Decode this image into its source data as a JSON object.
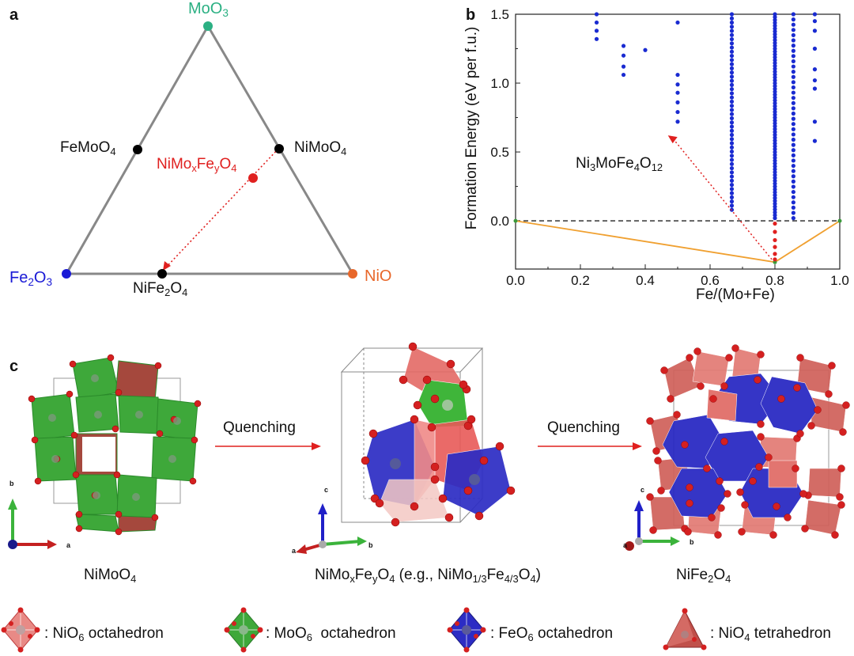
{
  "panel_labels": {
    "a": "a",
    "b": "b",
    "c": "c"
  },
  "ternary": {
    "vertices": {
      "top": {
        "formula": "MoO",
        "sub": "3",
        "color": "#2bb083"
      },
      "left": {
        "formula": "Fe",
        "sub1": "2",
        "mid": "O",
        "sub2": "3",
        "color": "#1a1ad6"
      },
      "right": {
        "formula": "NiO",
        "color": "#e8672a"
      }
    },
    "edge_points": {
      "femoo4": {
        "base": "FeMoO",
        "sub": "4"
      },
      "nimoo4": {
        "base": "NiMoO",
        "sub": "4"
      },
      "nife2o4": {
        "p1": "NiFe",
        "s1": "2",
        "p2": "O",
        "s2": "4"
      }
    },
    "interior_point": {
      "p1": "NiMo",
      "s1": "x",
      "p2": "Fe",
      "s2": "y",
      "p3": "O",
      "s3": "4",
      "color": "#e0201f"
    }
  },
  "chart_data": {
    "type": "scatter",
    "ylabel": "Formation Energy (eV per f.u.)",
    "xlabel": "Fe/(Mo+Fe)",
    "xlim": [
      0.0,
      1.0
    ],
    "ylim": [
      -0.35,
      1.5
    ],
    "x_ticks": [
      "0.0",
      "0.2",
      "0.4",
      "0.6",
      "0.8",
      "1.0"
    ],
    "y_ticks": [
      "0.0",
      "0.5",
      "1.0",
      "1.5"
    ],
    "annotation": {
      "p1": "Ni",
      "s1": "3",
      "p2": "MoFe",
      "s2": "4",
      "p3": "O",
      "s3": "12",
      "x": 0.47,
      "y": 0.62
    },
    "reference_line_y": 0.0,
    "hull": {
      "x": [
        0.0,
        0.8,
        1.0
      ],
      "y": [
        0.0,
        -0.3,
        0.0
      ],
      "color": "#f0a030"
    },
    "stable_points": {
      "x": 0.8,
      "y": [
        -0.02,
        -0.08,
        -0.14,
        -0.19,
        -0.24,
        -0.28
      ]
    },
    "series": [
      {
        "x": 0.25,
        "y": [
          1.5,
          1.44,
          1.38,
          1.32
        ]
      },
      {
        "x": 0.333,
        "y": [
          1.27,
          1.2,
          1.12,
          1.06
        ]
      },
      {
        "x": 0.4,
        "y": [
          1.24
        ]
      },
      {
        "x": 0.5,
        "y": [
          1.44,
          1.06,
          0.99,
          0.93,
          0.86,
          0.79,
          0.72
        ]
      },
      {
        "x": 0.667,
        "y_from": 0.08,
        "y_to": 1.5,
        "n": 48
      },
      {
        "x": 0.8,
        "y_from": 0.02,
        "y_to": 1.5,
        "n": 72
      },
      {
        "x": 0.857,
        "y_from": 0.02,
        "y_to": 1.5,
        "n": 40
      },
      {
        "x": 0.923,
        "y": [
          1.5,
          1.45,
          1.38,
          1.25,
          1.1,
          1.02,
          0.96,
          0.72,
          0.58
        ]
      }
    ],
    "point_color": "#1a2bd1",
    "stable_color": "#e0201f"
  },
  "structures": {
    "arrow_label_1": "Quenching",
    "arrow_label_2": "Quenching",
    "axes": {
      "a": "a",
      "b": "b",
      "c": "c"
    },
    "name1": {
      "base": "NiMoO",
      "sub": "4"
    },
    "name2": {
      "p1": "NiMo",
      "s1": "x",
      "p2": "Fe",
      "s2": "y",
      "p3": "O",
      "s3": "4",
      "p4": " (e.g., NiMo",
      "s4": "1/3",
      "p5": "Fe",
      "s5": "4/3",
      "p6": "O",
      "s6": "4",
      "p7": ")"
    },
    "name3": {
      "p1": "NiFe",
      "s1": "2",
      "p2": "O",
      "s2": "4"
    }
  },
  "legend": [
    {
      "pre": ": NiO",
      "sub": "6",
      "post": " octahedron"
    },
    {
      "pre": ": MoO",
      "sub": "6",
      "post": "  octahedron"
    },
    {
      "pre": ": FeO",
      "sub": "6",
      "post": " octahedron"
    },
    {
      "pre": ": NiO",
      "sub": "4",
      "post": " tetrahedron"
    }
  ]
}
